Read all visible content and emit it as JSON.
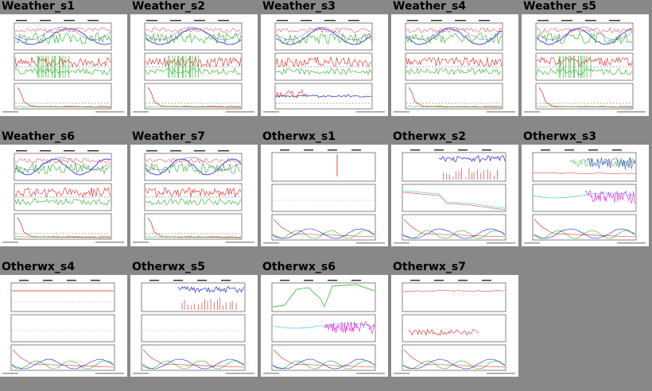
{
  "page": {
    "background": "#888888"
  },
  "thumbnails": [
    {
      "title": "Weather_s1",
      "kind": "weather",
      "variant": 1
    },
    {
      "title": "Weather_s2",
      "kind": "weather",
      "variant": 2
    },
    {
      "title": "Weather_s3",
      "kind": "weather",
      "variant": 3
    },
    {
      "title": "Weather_s4",
      "kind": "weather",
      "variant": 4
    },
    {
      "title": "Weather_s5",
      "kind": "weather",
      "variant": 5
    },
    {
      "title": "Weather_s6",
      "kind": "weather",
      "variant": 6
    },
    {
      "title": "Weather_s7",
      "kind": "weather",
      "variant": 7
    },
    {
      "title": "Otherwx_s1",
      "kind": "otherwx",
      "variant": 1
    },
    {
      "title": "Otherwx_s2",
      "kind": "otherwx",
      "variant": 2
    },
    {
      "title": "Otherwx_s3",
      "kind": "otherwx",
      "variant": 3
    },
    {
      "title": "Otherwx_s4",
      "kind": "otherwx",
      "variant": 4
    },
    {
      "title": "Otherwx_s5",
      "kind": "otherwx",
      "variant": 5
    },
    {
      "title": "Otherwx_s6",
      "kind": "otherwx",
      "variant": 6
    },
    {
      "title": "Otherwx_s7",
      "kind": "otherwx",
      "variant": 7
    }
  ],
  "colors": {
    "red": "#e02020",
    "green": "#20b020",
    "blue": "#2020e0",
    "magenta": "#e020e0",
    "cyan": "#20c0e0",
    "purple": "#8040c0",
    "grey": "#999999",
    "ink": "#333333"
  }
}
